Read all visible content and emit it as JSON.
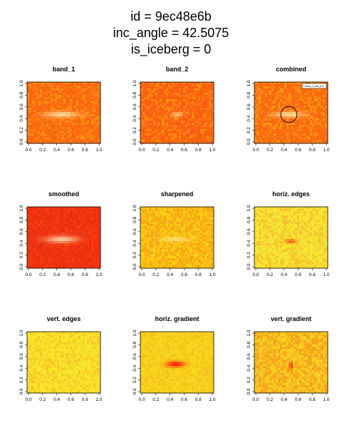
{
  "figure": {
    "title_lines": [
      "id = 9ec48e6b",
      "inc_angle = 42.5075",
      "is_iceberg = 0"
    ]
  },
  "chart_data": [
    {
      "type": "heatmap",
      "title": "band_1",
      "xlim": [
        0,
        1
      ],
      "ylim": [
        0,
        1
      ],
      "xticks": [
        "0.0",
        "0.2",
        "0.4",
        "0.6",
        "0.8",
        "1.0"
      ],
      "yticks": [
        "0.0",
        "0.2",
        "0.4",
        "0.6",
        "0.8",
        "1.0"
      ],
      "colormap": [
        "#ff0000",
        "#ff8000",
        "#ffff00",
        "#ffffcc"
      ],
      "background": "#fa6414",
      "noise": 0.28,
      "features": [
        {
          "kind": "streak",
          "cx": 0.47,
          "cy": 0.47,
          "length": 0.55,
          "width": 0.06,
          "intensity": 0.75
        }
      ]
    },
    {
      "type": "heatmap",
      "title": "band_2",
      "xlim": [
        0,
        1
      ],
      "ylim": [
        0,
        1
      ],
      "xticks": [
        "0.0",
        "0.2",
        "0.4",
        "0.6",
        "0.8",
        "1.0"
      ],
      "yticks": [
        "0.0",
        "0.2",
        "0.4",
        "0.6",
        "0.8",
        "1.0"
      ],
      "colormap": [
        "#ff0000",
        "#ff8000",
        "#ffff00",
        "#ffffcc"
      ],
      "background": "#fa5a14",
      "noise": 0.3,
      "features": [
        {
          "kind": "streak",
          "cx": 0.5,
          "cy": 0.47,
          "length": 0.18,
          "width": 0.05,
          "intensity": 0.55
        }
      ]
    },
    {
      "type": "heatmap",
      "title": "combined",
      "xlim": [
        0,
        1
      ],
      "ylim": [
        0,
        1
      ],
      "xticks": [
        "0.0",
        "0.2",
        "0.4",
        "0.6",
        "0.8",
        "1.0"
      ],
      "yticks": [
        "0.0",
        "0.2",
        "0.4",
        "0.6",
        "0.8",
        "1.0"
      ],
      "colormap": [
        "#ff0000",
        "#ff8000",
        "#ffff00",
        "#ffffcc"
      ],
      "background": "#fa6414",
      "noise": 0.3,
      "features": [
        {
          "kind": "streak",
          "cx": 0.47,
          "cy": 0.47,
          "length": 0.5,
          "width": 0.06,
          "intensity": 0.75
        }
      ],
      "circle": {
        "cx": 0.47,
        "cy": 0.47,
        "r": 0.11
      },
      "legend": {
        "text": "0 band_1_max_pos",
        "position": "top-right"
      }
    },
    {
      "type": "heatmap",
      "title": "smoothed",
      "xlim": [
        0,
        1
      ],
      "ylim": [
        0,
        1
      ],
      "xticks": [
        "0.0",
        "0.2",
        "0.4",
        "0.6",
        "0.8",
        "1.0"
      ],
      "yticks": [
        "0.0",
        "0.2",
        "0.4",
        "0.6",
        "0.8",
        "1.0"
      ],
      "colormap": [
        "#ff0000",
        "#ff8000",
        "#ffff00",
        "#ffffcc"
      ],
      "background": "#ee2a10",
      "noise": 0.1,
      "features": [
        {
          "kind": "streak",
          "cx": 0.47,
          "cy": 0.47,
          "length": 0.55,
          "width": 0.07,
          "intensity": 0.75
        }
      ]
    },
    {
      "type": "heatmap",
      "title": "sharpened",
      "xlim": [
        0,
        1
      ],
      "ylim": [
        0,
        1
      ],
      "xticks": [
        "0.0",
        "0.2",
        "0.4",
        "0.6",
        "0.8",
        "1.0"
      ],
      "yticks": [
        "0.0",
        "0.2",
        "0.4",
        "0.6",
        "0.8",
        "1.0"
      ],
      "colormap": [
        "#ff0000",
        "#ff8000",
        "#ffff00",
        "#ffffcc"
      ],
      "background": "#f7b81a",
      "noise": 0.35,
      "features": [
        {
          "kind": "streak",
          "cx": 0.47,
          "cy": 0.47,
          "length": 0.5,
          "width": 0.05,
          "intensity": 0.5
        }
      ]
    },
    {
      "type": "heatmap",
      "title": "horiz. edges",
      "xlim": [
        0,
        1
      ],
      "ylim": [
        0,
        1
      ],
      "xticks": [
        "0.0",
        "0.2",
        "0.4",
        "0.6",
        "0.8",
        "1.0"
      ],
      "yticks": [
        "0.0",
        "0.2",
        "0.4",
        "0.6",
        "0.8",
        "1.0"
      ],
      "colormap": [
        "#ff0000",
        "#ff8000",
        "#ffff00",
        "#ffffcc"
      ],
      "background": "#f4de3c",
      "noise": 0.3,
      "features": [
        {
          "kind": "dark-streak",
          "cx": 0.5,
          "cy": 0.44,
          "length": 0.2,
          "width": 0.03,
          "intensity": 0.8
        }
      ]
    },
    {
      "type": "heatmap",
      "title": "vert. edges",
      "xlim": [
        0,
        1
      ],
      "ylim": [
        0,
        1
      ],
      "xticks": [
        "0.0",
        "0.2",
        "0.4",
        "0.6",
        "0.8",
        "1.0"
      ],
      "yticks": [
        "0.0",
        "0.2",
        "0.4",
        "0.6",
        "0.8",
        "1.0"
      ],
      "colormap": [
        "#ff0000",
        "#ff8000",
        "#ffff00",
        "#ffffcc"
      ],
      "background": "#f6e030",
      "noise": 0.25,
      "features": []
    },
    {
      "type": "heatmap",
      "title": "horiz. gradient",
      "xlim": [
        0,
        1
      ],
      "ylim": [
        0,
        1
      ],
      "xticks": [
        "0.0",
        "0.2",
        "0.4",
        "0.6",
        "0.8",
        "1.0"
      ],
      "yticks": [
        "0.0",
        "0.2",
        "0.4",
        "0.6",
        "0.8",
        "1.0"
      ],
      "colormap": [
        "#ff0000",
        "#ff8000",
        "#ffff00",
        "#ffffcc"
      ],
      "background": "#f6d020",
      "noise": 0.18,
      "features": [
        {
          "kind": "dark-streak",
          "cx": 0.48,
          "cy": 0.47,
          "length": 0.32,
          "width": 0.06,
          "intensity": 0.9
        }
      ]
    },
    {
      "type": "heatmap",
      "title": "vert. gradient",
      "xlim": [
        0,
        1
      ],
      "ylim": [
        0,
        1
      ],
      "xticks": [
        "0.0",
        "0.2",
        "0.4",
        "0.6",
        "0.8",
        "1.0"
      ],
      "yticks": [
        "0.0",
        "0.2",
        "0.4",
        "0.6",
        "0.8",
        "1.0"
      ],
      "colormap": [
        "#ff0000",
        "#ff8000",
        "#ffff00",
        "#ffffcc"
      ],
      "background": "#f4b828",
      "noise": 0.4,
      "features": [
        {
          "kind": "dark-streak",
          "cx": 0.5,
          "cy": 0.45,
          "length": 0.06,
          "width": 0.08,
          "intensity": 0.8
        }
      ]
    }
  ]
}
